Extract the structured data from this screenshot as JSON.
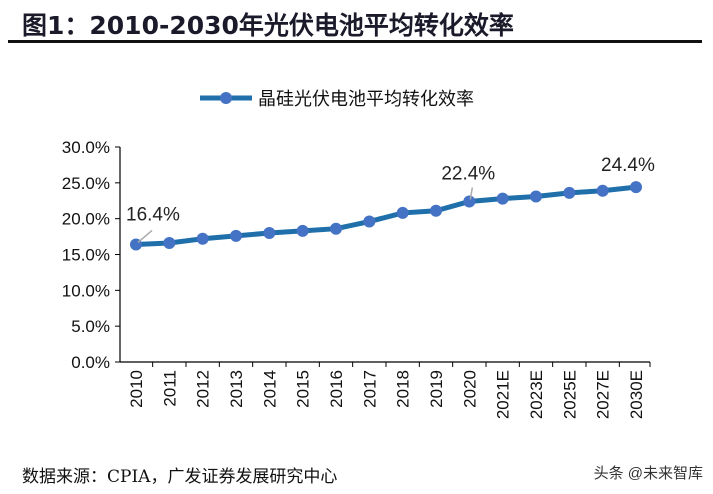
{
  "title": "图1：2010-2030年光伏电池平均转化效率",
  "source": "数据来源：CPIA，广发证券发展研究中心",
  "watermark": "头条 @未来智库",
  "chart_data": {
    "type": "line",
    "categories": [
      "2010",
      "2011",
      "2012",
      "2013",
      "2014",
      "2015",
      "2016",
      "2017",
      "2018",
      "2019",
      "2020",
      "2021E",
      "2023E",
      "2025E",
      "2027E",
      "2030E"
    ],
    "series": [
      {
        "name": "晶硅光伏电池平均转化效率",
        "values": [
          16.4,
          16.6,
          17.2,
          17.6,
          18.0,
          18.3,
          18.6,
          19.6,
          20.8,
          21.1,
          22.4,
          22.8,
          23.1,
          23.6,
          23.9,
          24.4
        ],
        "color": "#1f6fab",
        "marker_color": "#4472c4"
      }
    ],
    "data_labels": [
      {
        "index": 0,
        "text": "16.4%"
      },
      {
        "index": 10,
        "text": "22.4%"
      },
      {
        "index": 15,
        "text": "24.4%"
      }
    ],
    "yticks": [
      "0.0%",
      "5.0%",
      "10.0%",
      "15.0%",
      "20.0%",
      "25.0%",
      "30.0%"
    ],
    "ylim": [
      0,
      30
    ],
    "grid": false,
    "legend": "top"
  }
}
